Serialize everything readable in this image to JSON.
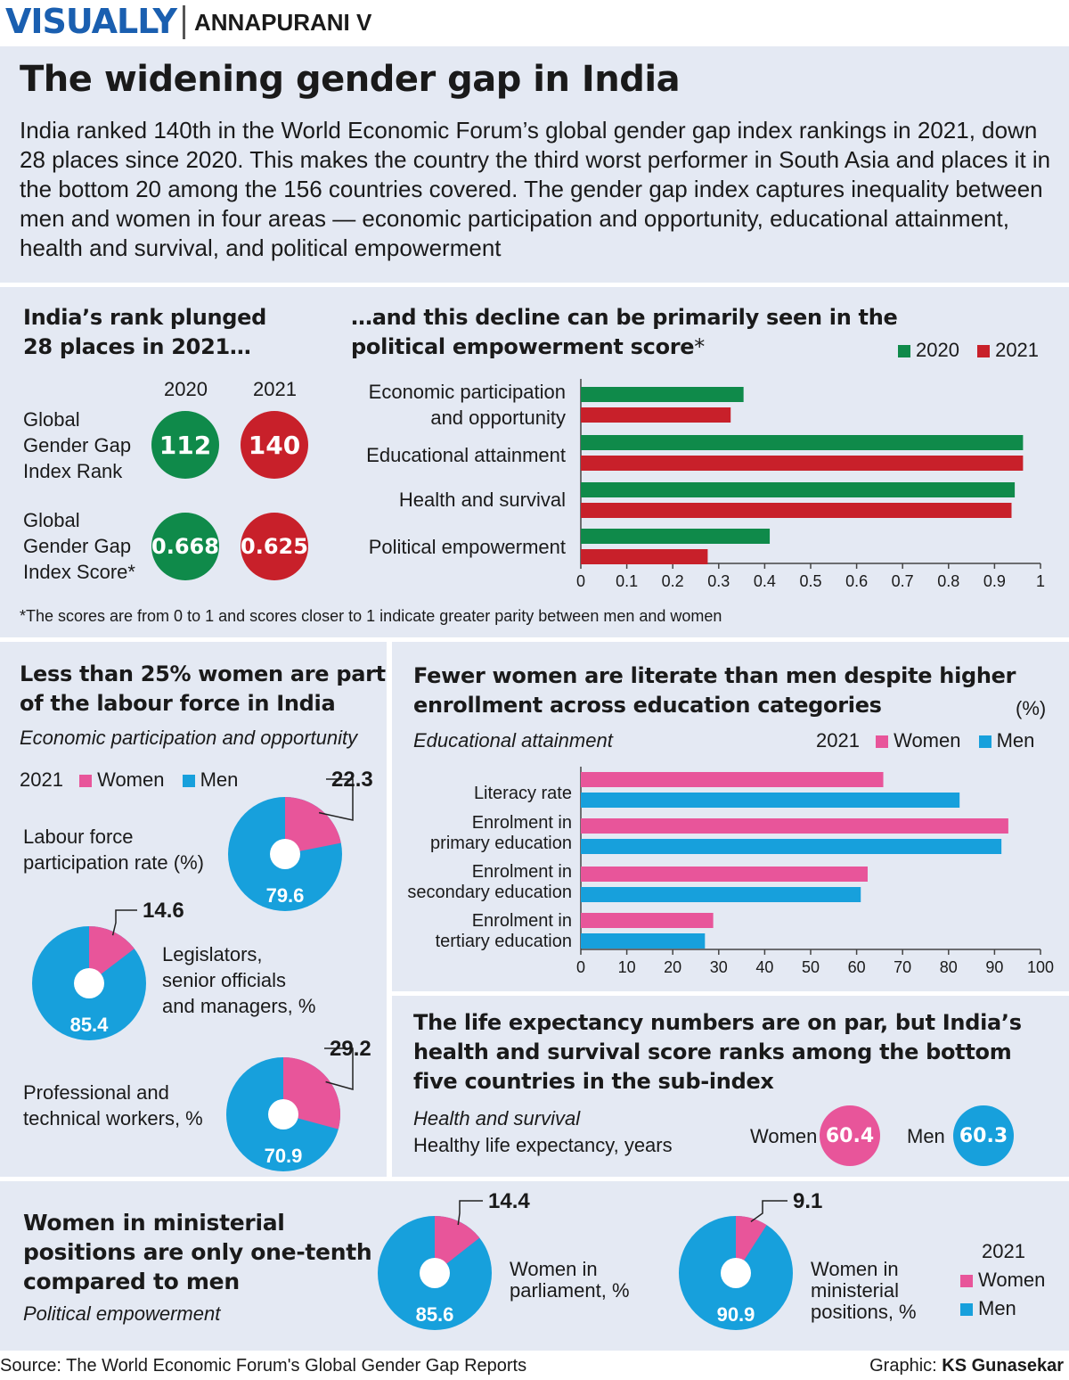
{
  "header": {
    "brand": "VISUALLY",
    "author": "ANNAPURANI V"
  },
  "title": "The widening gender gap in India",
  "intro": "India ranked 140th in the World Economic Forum’s global gender gap index rankings in 2021, down 28 places since 2020. This makes the country the third worst performer in South Asia and places it in the bottom 20 among the 156 countries covered. The gender gap index captures inequality between men and women in four areas — economic participation and opportunity, educational attainment, health and survival, and political empowerment",
  "colors": {
    "green": "#0f8a4a",
    "red": "#c8202a",
    "pink": "#e8559a",
    "blue": "#17a0dc",
    "panel": "#e4e9f3",
    "brand": "#1a5fb0"
  },
  "rank": {
    "title_1": "India’s rank plunged",
    "title_2": "28 places in 2021…",
    "year_2020": "2020",
    "year_2021": "2021",
    "rank_label_1": "Global",
    "rank_label_2": "Gender Gap",
    "rank_label_3": "Index Rank",
    "rank_2020": "112",
    "rank_2021": "140",
    "score_label_1": "Global",
    "score_label_2": "Gender Gap",
    "score_label_3": "Index Score*",
    "score_2020": "0.668",
    "score_2021": "0.625"
  },
  "political": {
    "title_1": "…and this decline can be primarily seen in the",
    "title_2": "political empowerment score",
    "title_star": "*",
    "legend_2020": "2020",
    "legend_2021": "2021",
    "cat_1a": "Economic participation",
    "cat_1b": "and opportunity",
    "cat_2": "Educational attainment",
    "cat_3": "Health and survival",
    "cat_4": "Political empowerment"
  },
  "footnote": "*The scores are from 0 to 1 and scores closer to 1 indicate greater parity between men and women",
  "labour": {
    "title_1": "Less than 25% women are part",
    "title_2": "of the labour force in India",
    "subtitle": "Economic participation and opportunity",
    "legend_year": "2021",
    "legend_women": "Women",
    "legend_men": "Men",
    "d1_label_1": "Labour force",
    "d1_label_2": "participation rate (%)",
    "d1_women": "22.3",
    "d1_men": "79.6",
    "d2_label_1": "Legislators,",
    "d2_label_2": "senior officials",
    "d2_label_3": "and managers, %",
    "d2_women": "14.6",
    "d2_men": "85.4",
    "d3_label_1": "Professional and",
    "d3_label_2": "technical workers, %",
    "d3_women": "29.2",
    "d3_men": "70.9"
  },
  "literacy": {
    "title_1": "Fewer women are literate than men despite higher",
    "title_2": "enrollment across education categories",
    "unit": "(%)",
    "subtitle": "Educational attainment",
    "legend_year": "2021",
    "legend_women": "Women",
    "legend_men": "Men",
    "cat_1": "Literacy rate",
    "cat_2a": "Enrolment in",
    "cat_2b": "primary education",
    "cat_3a": "Enrolment in",
    "cat_3b": "secondary education",
    "cat_4a": "Enrolment in",
    "cat_4b": "tertiary education"
  },
  "health": {
    "title_1": "The life expectancy numbers are on par, but India’s",
    "title_2": "health and survival score ranks among the bottom",
    "title_3": "five countries in the sub-index",
    "subtitle": "Health and survival",
    "label": "Healthy life expectancy, years",
    "women_label": "Women",
    "women_value": "60.4",
    "men_label": "Men",
    "men_value": "60.3"
  },
  "ministerial": {
    "title_1": "Women in ministerial",
    "title_2": "positions are only one-tenth",
    "title_3": "compared to men",
    "subtitle": "Political empowerment",
    "p_label_1": "Women in",
    "p_label_2": "parliament, %",
    "p_women": "14.4",
    "p_men": "85.6",
    "m_label_1": "Women in",
    "m_label_2": "ministerial",
    "m_label_3": "positions, %",
    "m_women": "9.1",
    "m_men": "90.9",
    "legend_year": "2021",
    "legend_women": "Women",
    "legend_men": "Men"
  },
  "footer": {
    "source": "Source: The World Economic Forum's Global Gender Gap Reports",
    "graphic_label": "Graphic:",
    "graphic_name": "KS Gunasekar"
  },
  "chart_data": [
    {
      "type": "bar",
      "orientation": "horizontal",
      "categories": [
        "Economic participation and opportunity",
        "Educational attainment",
        "Health and survival",
        "Political empowerment"
      ],
      "series": [
        {
          "name": "2020",
          "values": [
            0.354,
            0.962,
            0.944,
            0.411
          ]
        },
        {
          "name": "2021",
          "values": [
            0.326,
            0.962,
            0.937,
            0.276
          ]
        }
      ],
      "xlim": [
        0,
        1
      ],
      "xticks": [
        "0",
        "0.1",
        "0.2",
        "0.3",
        "0.4",
        "0.5",
        "0.6",
        "0.7",
        "0.8",
        "0.9",
        "1"
      ],
      "grid": false,
      "legend": "top-right"
    },
    {
      "type": "bar",
      "orientation": "horizontal",
      "categories": [
        "Literacy rate",
        "Enrolment in primary education",
        "Enrolment in secondary education",
        "Enrolment in tertiary education"
      ],
      "series": [
        {
          "name": "Women",
          "values": [
            65.8,
            93.0,
            62.4,
            28.8
          ]
        },
        {
          "name": "Men",
          "values": [
            82.4,
            91.5,
            60.9,
            27.0
          ]
        }
      ],
      "xlim": [
        0,
        100
      ],
      "xticks": [
        "0",
        "10",
        "20",
        "30",
        "40",
        "50",
        "60",
        "70",
        "80",
        "90",
        "100"
      ],
      "grid": false,
      "legend": "top-right"
    },
    {
      "type": "pie",
      "categories": [
        "Women",
        "Men"
      ],
      "donuts": [
        {
          "name": "Labour force participation rate (%)",
          "values": [
            22.3,
            79.6
          ]
        },
        {
          "name": "Legislators, senior officials and managers, %",
          "values": [
            14.6,
            85.4
          ]
        },
        {
          "name": "Professional and technical workers, %",
          "values": [
            29.2,
            70.9
          ]
        },
        {
          "name": "Women in parliament, %",
          "values": [
            14.4,
            85.6
          ]
        },
        {
          "name": "Women in ministerial positions, %",
          "values": [
            9.1,
            90.9
          ]
        }
      ]
    }
  ]
}
